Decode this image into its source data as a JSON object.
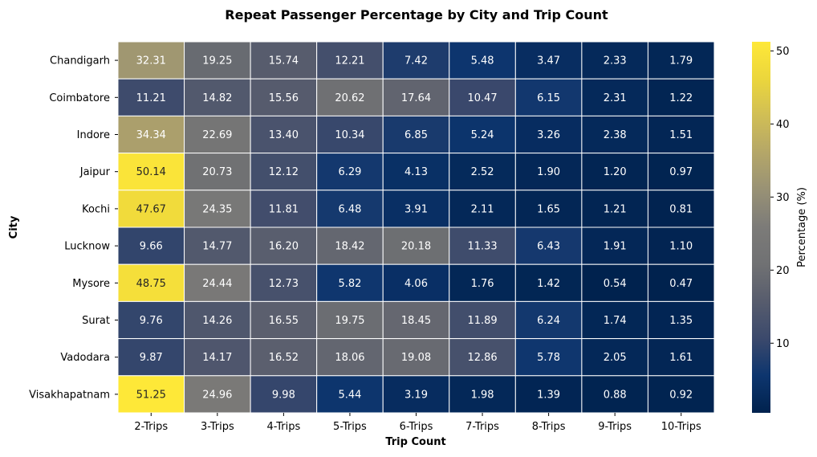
{
  "chart_data": {
    "type": "heatmap",
    "title": "Repeat Passenger Percentage by City and Trip Count",
    "xlabel": "Trip Count",
    "ylabel": "City",
    "x_categories": [
      "2-Trips",
      "3-Trips",
      "4-Trips",
      "5-Trips",
      "6-Trips",
      "7-Trips",
      "8-Trips",
      "9-Trips",
      "10-Trips"
    ],
    "y_categories": [
      "Chandigarh",
      "Coimbatore",
      "Indore",
      "Jaipur",
      "Kochi",
      "Lucknow",
      "Mysore",
      "Surat",
      "Vadodara",
      "Visakhapatnam"
    ],
    "values": [
      [
        32.31,
        19.25,
        15.74,
        12.21,
        7.42,
        5.48,
        3.47,
        2.33,
        1.79
      ],
      [
        11.21,
        14.82,
        15.56,
        20.62,
        17.64,
        10.47,
        6.15,
        2.31,
        1.22
      ],
      [
        34.34,
        22.69,
        13.4,
        10.34,
        6.85,
        5.24,
        3.26,
        2.38,
        1.51
      ],
      [
        50.14,
        20.73,
        12.12,
        6.29,
        4.13,
        2.52,
        1.9,
        1.2,
        0.97
      ],
      [
        47.67,
        24.35,
        11.81,
        6.48,
        3.91,
        2.11,
        1.65,
        1.21,
        0.81
      ],
      [
        9.66,
        14.77,
        16.2,
        18.42,
        20.18,
        11.33,
        6.43,
        1.91,
        1.1
      ],
      [
        48.75,
        24.44,
        12.73,
        5.82,
        4.06,
        1.76,
        1.42,
        0.54,
        0.47
      ],
      [
        9.76,
        14.26,
        16.55,
        19.75,
        18.45,
        11.89,
        6.24,
        1.74,
        1.35
      ],
      [
        9.87,
        14.17,
        16.52,
        18.06,
        19.08,
        12.86,
        5.78,
        2.05,
        1.61
      ],
      [
        51.25,
        24.96,
        9.98,
        5.44,
        3.19,
        1.98,
        1.39,
        0.88,
        0.92
      ]
    ],
    "value_labels": [
      [
        "32.31",
        "19.25",
        "15.74",
        "12.21",
        "7.42",
        "5.48",
        "3.47",
        "2.33",
        "1.79"
      ],
      [
        "11.21",
        "14.82",
        "15.56",
        "20.62",
        "17.64",
        "10.47",
        "6.15",
        "2.31",
        "1.22"
      ],
      [
        "34.34",
        "22.69",
        "13.40",
        "10.34",
        "6.85",
        "5.24",
        "3.26",
        "2.38",
        "1.51"
      ],
      [
        "50.14",
        "20.73",
        "12.12",
        "6.29",
        "4.13",
        "2.52",
        "1.90",
        "1.20",
        "0.97"
      ],
      [
        "47.67",
        "24.35",
        "11.81",
        "6.48",
        "3.91",
        "2.11",
        "1.65",
        "1.21",
        "0.81"
      ],
      [
        "9.66",
        "14.77",
        "16.20",
        "18.42",
        "20.18",
        "11.33",
        "6.43",
        "1.91",
        "1.10"
      ],
      [
        "48.75",
        "24.44",
        "12.73",
        "5.82",
        "4.06",
        "1.76",
        "1.42",
        "0.54",
        "0.47"
      ],
      [
        "9.76",
        "14.26",
        "16.55",
        "19.75",
        "18.45",
        "11.89",
        "6.24",
        "1.74",
        "1.35"
      ],
      [
        "9.87",
        "14.17",
        "16.52",
        "18.06",
        "19.08",
        "12.86",
        "5.78",
        "2.05",
        "1.61"
      ],
      [
        "51.25",
        "24.96",
        "9.98",
        "5.44",
        "3.19",
        "1.98",
        "1.39",
        "0.88",
        "0.92"
      ]
    ],
    "colormap": "cividis",
    "value_range": [
      0.47,
      51.25
    ],
    "colorbar": {
      "label": "Percentage (%)",
      "ticks": [
        10,
        20,
        30,
        40,
        50
      ],
      "tick_labels": [
        "10",
        "20",
        "30",
        "40",
        "50"
      ]
    },
    "grid": false,
    "legend": "colorbar-right",
    "cell_border_color": "#ffffff",
    "annotation_light_color": "#ffffff",
    "annotation_dark_color": "#262626"
  }
}
